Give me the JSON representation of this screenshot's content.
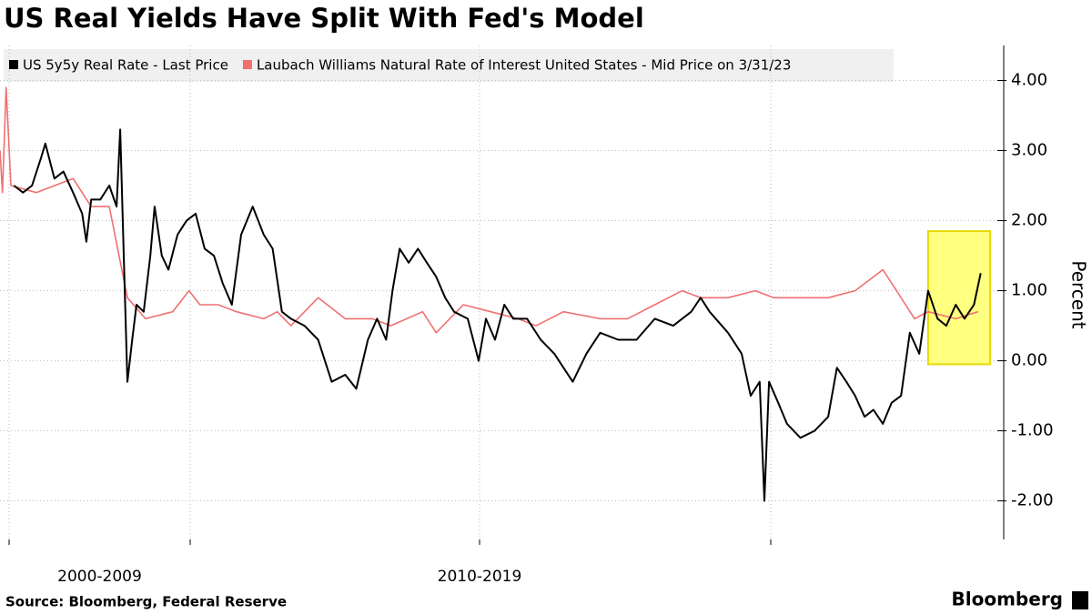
{
  "chart_data": {
    "type": "line",
    "title": "US Real Yields Have Split With Fed's Model",
    "y_label": "Percent",
    "source": "Source:  Bloomberg, Federal Reserve",
    "brand": "Bloomberg",
    "x_period_labels": [
      "2000-2009",
      "2010-2019"
    ],
    "xlim": [
      1996.85,
      2023.41
    ],
    "xticks": [
      1997,
      2000,
      2010,
      2020
    ],
    "ylim": [
      -2.55,
      4.5
    ],
    "yticks": [
      {
        "value": -2,
        "label": "-2.00"
      },
      {
        "value": -1,
        "label": "-1.00"
      },
      {
        "value": 0,
        "label": "0.00"
      },
      {
        "value": 1,
        "label": "1.00"
      },
      {
        "value": 2,
        "label": "2.00"
      },
      {
        "value": 3,
        "label": "3.00"
      },
      {
        "value": 4,
        "label": "4.00"
      }
    ],
    "grid": true,
    "highlight": {
      "xlim": [
        2022.33,
        2023.25
      ],
      "ylim": [
        -0.05,
        1.85
      ],
      "color": "#ffff80"
    },
    "series": [
      {
        "name": "US 5y5y Real Rate - Last Price",
        "color": "#000000",
        "x": [
          1997.08,
          1997.23,
          1997.38,
          1997.53,
          1997.6,
          1997.75,
          1997.9,
          1998.06,
          1998.21,
          1998.28,
          1998.36,
          1998.51,
          1998.66,
          1998.78,
          1998.84,
          1998.9,
          1998.96,
          1999.04,
          1999.11,
          1999.23,
          1999.34,
          1999.41,
          1999.53,
          1999.64,
          1999.79,
          1999.94,
          2000.19,
          2000.5,
          2000.82,
          2001.13,
          2001.44,
          2001.76,
          2002.16,
          2002.54,
          2002.85,
          2003.17,
          2003.48,
          2003.95,
          2004.42,
          2004.89,
          2005.36,
          2005.74,
          2006.14,
          2006.46,
          2006.77,
          2006.99,
          2007.24,
          2007.55,
          2007.87,
          2008.18,
          2008.5,
          2008.81,
          2009.12,
          2009.59,
          2009.97,
          2010.22,
          2010.53,
          2010.85,
          2011.16,
          2011.63,
          2012.1,
          2012.57,
          2013.2,
          2013.67,
          2014.14,
          2014.76,
          2015.39,
          2016.02,
          2016.65,
          2017.27,
          2017.59,
          2017.9,
          2018.53,
          2019.0,
          2019.31,
          2019.62,
          2019.78,
          2019.94,
          2020.11,
          2020.24,
          2020.44,
          2020.65,
          2020.85,
          2020.98,
          2021.12,
          2021.25,
          2021.39,
          2021.52,
          2021.66,
          2021.79,
          2021.93,
          2022.06,
          2022.2,
          2022.33,
          2022.47,
          2022.6,
          2022.74,
          2022.87,
          2023.01,
          2023.11
        ],
        "values": [
          2.5,
          2.4,
          2.5,
          2.9,
          3.1,
          2.6,
          2.7,
          2.4,
          2.1,
          1.7,
          2.3,
          2.3,
          2.5,
          2.2,
          3.3,
          1.5,
          -0.3,
          0.3,
          0.8,
          0.7,
          1.5,
          2.2,
          1.5,
          1.3,
          1.8,
          2.0,
          2.1,
          1.6,
          1.5,
          1.1,
          0.8,
          1.8,
          2.2,
          1.8,
          1.6,
          0.7,
          0.6,
          0.5,
          0.3,
          -0.3,
          -0.2,
          -0.4,
          0.3,
          0.6,
          0.3,
          1.0,
          1.6,
          1.4,
          1.6,
          1.4,
          1.2,
          0.9,
          0.7,
          0.6,
          0.0,
          0.6,
          0.3,
          0.8,
          0.6,
          0.6,
          0.3,
          0.1,
          -0.3,
          0.1,
          0.4,
          0.3,
          0.3,
          0.6,
          0.5,
          0.7,
          0.9,
          0.7,
          0.4,
          0.1,
          -0.5,
          -0.3,
          -2.0,
          -0.3,
          -0.6,
          -0.9,
          -1.1,
          -1.0,
          -0.8,
          -0.1,
          -0.3,
          -0.5,
          -0.8,
          -0.7,
          -0.9,
          -0.6,
          -0.5,
          0.4,
          0.1,
          1.0,
          0.6,
          0.5,
          0.8,
          0.6,
          0.8,
          1.25
        ]
      },
      {
        "name": "Laubach Williams Natural Rate of Interest United States - Mid Price on 3/31/23",
        "color": "#f07070",
        "x": [
          1996.85,
          1996.89,
          1996.95,
          1997.03,
          1997.45,
          1998.06,
          1998.36,
          1998.66,
          1998.96,
          1999.26,
          1999.71,
          1999.98,
          2000.34,
          2000.97,
          2001.6,
          2002.54,
          2003.01,
          2003.48,
          2004.42,
          2005.36,
          2006.3,
          2006.93,
          2008.03,
          2008.5,
          2009.44,
          2010.38,
          2011.32,
          2011.94,
          2012.88,
          2014.14,
          2015.08,
          2016.02,
          2016.96,
          2017.59,
          2018.53,
          2019.47,
          2020.04,
          2020.44,
          2020.85,
          2021.25,
          2021.66,
          2021.93,
          2022.13,
          2022.33,
          2022.74,
          2023.07
        ],
        "values": [
          3.0,
          2.4,
          3.9,
          2.5,
          2.4,
          2.6,
          2.2,
          2.2,
          0.9,
          0.6,
          0.7,
          1.0,
          0.8,
          0.8,
          0.7,
          0.6,
          0.7,
          0.5,
          0.9,
          0.6,
          0.6,
          0.5,
          0.7,
          0.4,
          0.8,
          0.7,
          0.6,
          0.5,
          0.7,
          0.6,
          0.6,
          0.8,
          1.0,
          0.9,
          0.9,
          1.0,
          0.9,
          0.9,
          0.9,
          1.0,
          1.3,
          0.9,
          0.6,
          0.7,
          0.6,
          0.7
        ]
      }
    ]
  }
}
